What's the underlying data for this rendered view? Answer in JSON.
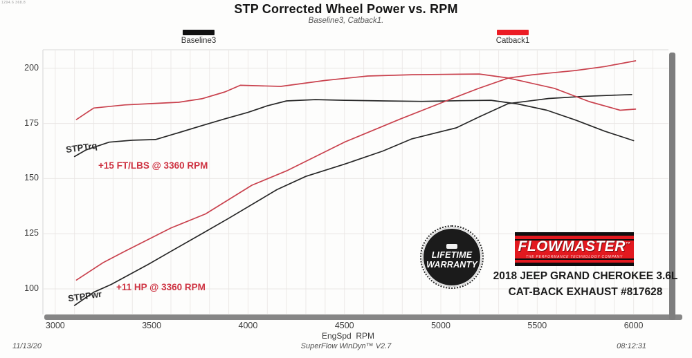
{
  "meta": {
    "corner_readout": "1294.6 368.8"
  },
  "header": {
    "title": "STP Corrected Wheel Power vs. RPM",
    "subtitle": "Baseline3, Catback1."
  },
  "legend": [
    {
      "label": "Baseline3",
      "color": "#111111"
    },
    {
      "label": "Catback1",
      "color": "#ec1c24"
    }
  ],
  "branding": {
    "badge_line1": "LIFETIME",
    "badge_line2": "WARRANTY",
    "logo_text": "FLOWMASTER",
    "logo_tm": "™",
    "logo_tagline": "THE PERFORMANCE TECHNOLOGY COMPANY",
    "vehicle_line1": "2018 JEEP GRAND CHEROKEE 3.6L",
    "vehicle_line2": "CAT-BACK EXHAUST #817628"
  },
  "footer": {
    "left": "11/13/20",
    "center": "SuperFlow WinDyn™ V2.7",
    "right": "08:12:31"
  },
  "chart_data": {
    "type": "line",
    "title": "STP Corrected Wheel Power vs. RPM",
    "subtitle": "Baseline3, Catback1.",
    "xlabel": "EngSpd  RPM",
    "ylabel": "",
    "xlim": [
      2936,
      6188
    ],
    "ylim": [
      88.4,
      208.4
    ],
    "x_ticks": [
      3000,
      3500,
      4000,
      4500,
      5000,
      5500,
      6000
    ],
    "y_ticks": [
      100,
      125,
      150,
      175,
      200
    ],
    "grid": {
      "vertical_every_rpm": 100,
      "color_v": "#ece9e7",
      "color_h": "#e9e6e4"
    },
    "legend_position": "top",
    "series": [
      {
        "name": "Baseline3 STPTrq",
        "color": "#262626",
        "points": [
          [
            3100,
            160
          ],
          [
            3160,
            163
          ],
          [
            3280,
            166.5
          ],
          [
            3400,
            167.4
          ],
          [
            3520,
            167.7
          ],
          [
            3640,
            170.8
          ],
          [
            3760,
            174
          ],
          [
            3880,
            177.1
          ],
          [
            4000,
            180
          ],
          [
            4100,
            183
          ],
          [
            4200,
            185.2
          ],
          [
            4350,
            185.8
          ],
          [
            4500,
            185.5
          ],
          [
            4700,
            185.2
          ],
          [
            4900,
            185
          ],
          [
            5100,
            185.3
          ],
          [
            5260,
            185.5
          ],
          [
            5400,
            183.8
          ],
          [
            5550,
            181
          ],
          [
            5700,
            176.5
          ],
          [
            5850,
            171.5
          ],
          [
            6000,
            167.2
          ]
        ]
      },
      {
        "name": "Baseline3 STPPwr",
        "color": "#262626",
        "points": [
          [
            3100,
            92.5
          ],
          [
            3200,
            98.5
          ],
          [
            3290,
            102
          ],
          [
            3480,
            111
          ],
          [
            3600,
            117
          ],
          [
            3760,
            125
          ],
          [
            3900,
            132
          ],
          [
            4150,
            145
          ],
          [
            4300,
            151
          ],
          [
            4500,
            156.5
          ],
          [
            4700,
            162.5
          ],
          [
            4850,
            168
          ],
          [
            5080,
            173
          ],
          [
            5200,
            178
          ],
          [
            5350,
            184
          ],
          [
            5560,
            186.3
          ],
          [
            5750,
            187.3
          ],
          [
            5990,
            188.1
          ]
        ]
      },
      {
        "name": "Catback1 STPTrq",
        "color": "#c9414d",
        "points": [
          [
            3110,
            176.8
          ],
          [
            3200,
            182
          ],
          [
            3360,
            183.4
          ],
          [
            3500,
            184
          ],
          [
            3640,
            184.6
          ],
          [
            3760,
            186.2
          ],
          [
            3880,
            189.3
          ],
          [
            3960,
            192.3
          ],
          [
            4170,
            191.8
          ],
          [
            4400,
            194.5
          ],
          [
            4620,
            196.5
          ],
          [
            4850,
            197.1
          ],
          [
            5100,
            197.3
          ],
          [
            5200,
            197.4
          ],
          [
            5350,
            195.6
          ],
          [
            5590,
            190.9
          ],
          [
            5770,
            184.9
          ],
          [
            5930,
            181
          ],
          [
            6010,
            181.5
          ]
        ]
      },
      {
        "name": "Catback1 STPPwr",
        "color": "#c9414d",
        "points": [
          [
            3110,
            104
          ],
          [
            3250,
            112
          ],
          [
            3360,
            117
          ],
          [
            3600,
            127.6
          ],
          [
            3780,
            134
          ],
          [
            4020,
            147
          ],
          [
            4200,
            153.5
          ],
          [
            4500,
            166.5
          ],
          [
            4790,
            177
          ],
          [
            5080,
            187
          ],
          [
            5200,
            191
          ],
          [
            5350,
            195.6
          ],
          [
            5470,
            197
          ],
          [
            5560,
            197.8
          ],
          [
            5700,
            199
          ],
          [
            5850,
            200.8
          ],
          [
            6010,
            203.4
          ]
        ]
      }
    ],
    "annotations": [
      {
        "id": "trq-label",
        "text": "STPTrq"
      },
      {
        "id": "pwr-label",
        "text": "STPPwr"
      },
      {
        "id": "trq-gain",
        "text": "+15 FT/LBS @ 3360 RPM"
      },
      {
        "id": "pwr-gain",
        "text": "+11 HP @ 3360 RPM"
      }
    ]
  }
}
